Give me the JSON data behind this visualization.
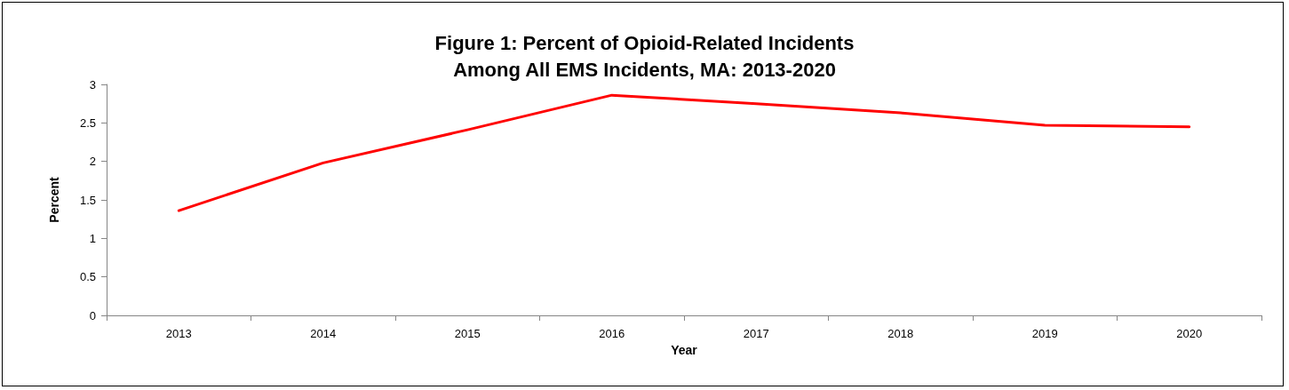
{
  "chart_data": {
    "type": "line",
    "title": "Figure 1: Percent of Opioid-Related Incidents\nAmong All EMS Incidents, MA: 2013-2020",
    "xlabel": "Year",
    "ylabel": "Percent",
    "categories": [
      "2013",
      "2014",
      "2015",
      "2016",
      "2017",
      "2018",
      "2019",
      "2020"
    ],
    "series": [
      {
        "color": "#ff0000",
        "values": [
          1.36,
          1.98,
          2.41,
          2.86,
          2.75,
          2.63,
          2.47,
          2.45
        ]
      }
    ],
    "ylim": [
      0,
      3
    ],
    "yticks": [
      0,
      0.5,
      1,
      1.5,
      2,
      2.5,
      3
    ],
    "grid": false,
    "marker": "none",
    "line_style": "solid"
  }
}
